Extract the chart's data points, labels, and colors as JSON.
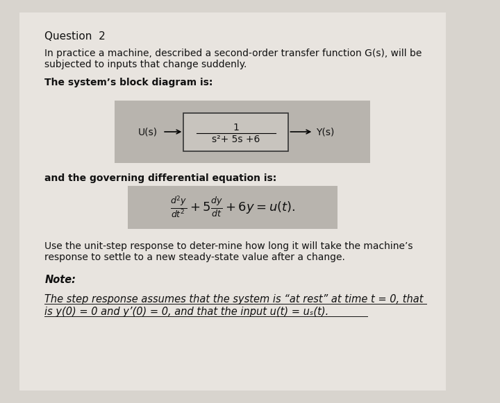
{
  "background_color": "#d8d4ce",
  "page_color": "#e8e4df",
  "title": "Question  2",
  "title_fontsize": 11,
  "para1_line1": "In practice a machine, described a second-order transfer function G(s), will be",
  "para1_line2": "subjected to inputs that change suddenly.",
  "para2": "The system’s block diagram is:",
  "block_label_left": "U(s)",
  "block_label_right": "Y(s)",
  "block_numerator": "1",
  "block_denominator": "s²+ 5s +6",
  "para3": "and the governing differential equation is:",
  "para4_line1": "Use the unit-step response to deter-mine how long it will take the machine’s",
  "para4_line2": "response to settle to a new steady-state value after a change.",
  "note_label": "Note:",
  "note_line1": "The step response assumes that the system is “at rest” at time t = 0, that",
  "note_line2": "is y(0) = 0 and y’(0) = 0, and that the input u(t) = uₛ(t).",
  "body_fontsize": 10,
  "note_fontsize": 10.5,
  "block_bg": "#b8b4ae",
  "eq_bg": "#b8b4ae",
  "text_color": "#111111"
}
